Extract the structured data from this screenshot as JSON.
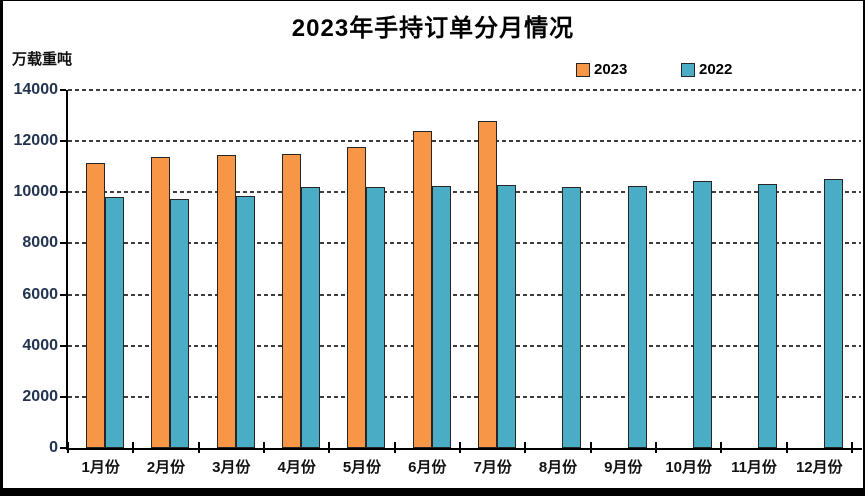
{
  "title": "2023年手持订单分月情况",
  "y_axis_unit": "万载重吨",
  "legend": {
    "items": [
      {
        "label": "2023",
        "color": "#F79646"
      },
      {
        "label": "2022",
        "color": "#4BACC6"
      }
    ]
  },
  "colors": {
    "background": "#ffffff",
    "frame_border": "#000000",
    "axis": "#000000",
    "grid": "#3d3d3d",
    "bar_border": "#262626",
    "series_2023": "#F79646",
    "series_2022": "#4BACC6",
    "y_label_text": "#233450",
    "x_label_text": "#111111"
  },
  "chart_data": {
    "type": "bar",
    "title": "2023年手持订单分月情况",
    "ylabel": "万载重吨",
    "xlabel": "",
    "categories": [
      "1月份",
      "2月份",
      "3月份",
      "4月份",
      "5月份",
      "6月份",
      "7月份",
      "8月份",
      "9月份",
      "10月份",
      "11月份",
      "12月份"
    ],
    "series": [
      {
        "name": "2023",
        "color": "#F79646",
        "values": [
          11140,
          11380,
          11460,
          11510,
          11790,
          12390,
          12780,
          null,
          null,
          null,
          null,
          null
        ]
      },
      {
        "name": "2022",
        "color": "#4BACC6",
        "values": [
          9800,
          9720,
          9870,
          10220,
          10190,
          10230,
          10300,
          10200,
          10240,
          10450,
          10320,
          10520
        ]
      }
    ],
    "ylim": [
      0,
      14000
    ],
    "y_ticks": [
      0,
      2000,
      4000,
      6000,
      8000,
      10000,
      12000,
      14000
    ],
    "y_tick_labels": [
      "0",
      "2000",
      "4000",
      "6000",
      "8000",
      "10000",
      "12000",
      "14000"
    ],
    "grid": "horizontal-dashed",
    "legend_position": "top-right"
  }
}
